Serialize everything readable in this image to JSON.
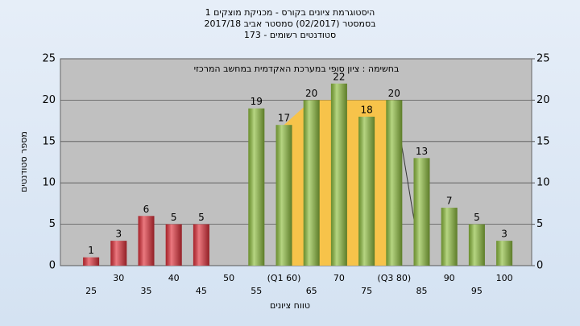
{
  "chart_data": {
    "type": "bar",
    "title": [
      "היסטוגרמת ציונים בקורס - מכניקת מוצקים 1",
      "בסמסטר  (02/2017)  סמסטר אביב 2017/18",
      "סטודנטים רשומים - 173"
    ],
    "annotation": "בחשימה : ציון סופי במערכת האקדמית במחשב המרכזי",
    "x_label": "טווח ציונים",
    "y_label": "מספר סטודנטים",
    "categories": [
      "25",
      "30",
      "35",
      "40",
      "45",
      "50",
      "55",
      "(Q1 60)",
      "65",
      "70",
      "75",
      "(Q3 80)",
      "85",
      "90",
      "95",
      "100"
    ],
    "values": [
      1,
      3,
      6,
      5,
      5,
      null,
      19,
      17,
      20,
      22,
      18,
      20,
      13,
      7,
      5,
      3
    ],
    "colors": [
      "#e0303a",
      "#e0303a",
      "#e0303a",
      "#e0303a",
      "#e0303a",
      "#8fbf3f",
      "#8fbf3f",
      "#8fbf3f",
      "#8fbf3f",
      "#8fbf3f",
      "#8fbf3f",
      "#8fbf3f",
      "#8fbf3f",
      "#8fbf3f",
      "#8fbf3f",
      "#8fbf3f"
    ],
    "ylim": [
      0,
      25
    ],
    "yticks": [
      0,
      5,
      10,
      15,
      20,
      25
    ],
    "y2lim": [
      0,
      25
    ],
    "y2ticks": [
      0,
      5,
      10,
      15,
      20,
      25
    ],
    "grid": true
  }
}
